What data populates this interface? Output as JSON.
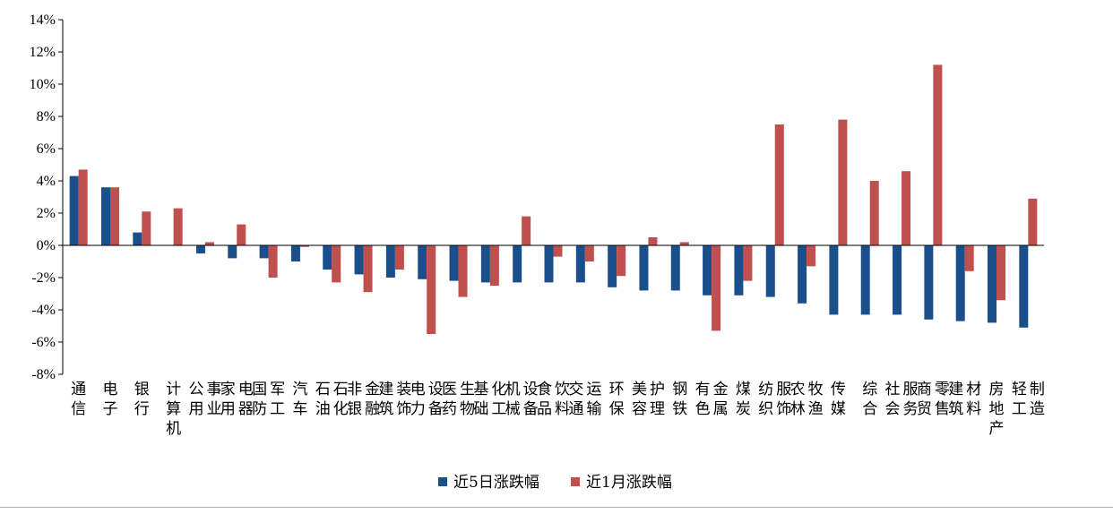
{
  "chart_data": {
    "type": "bar",
    "categories": [
      "通信",
      "电子",
      "银行",
      "计算机",
      "公用事业",
      "家用电器",
      "国防军工",
      "汽车",
      "石油石化",
      "非银金融",
      "建筑装饰",
      "电力设备",
      "医药生物",
      "基础化工",
      "机械设备",
      "食品饮料",
      "交通运输",
      "环保",
      "美容护理",
      "钢铁",
      "有色金属",
      "煤炭",
      "纺织服饰",
      "农林牧渔",
      "传媒",
      "综合",
      "社会服务",
      "商贸零售",
      "建筑材料",
      "房地产",
      "轻工制造"
    ],
    "series": [
      {
        "name": "近5日涨跌幅",
        "color": "#1b4f8c",
        "values": [
          4.3,
          3.6,
          0.8,
          0.0,
          -0.5,
          -0.8,
          -0.8,
          -1.0,
          -1.5,
          -1.8,
          -2.0,
          -2.1,
          -2.2,
          -2.3,
          -2.3,
          -2.3,
          -2.3,
          -2.6,
          -2.8,
          -2.8,
          -3.1,
          -3.1,
          -3.2,
          -3.6,
          -4.3,
          -4.3,
          -4.3,
          -4.6,
          -4.7,
          -4.8,
          -5.1
        ]
      },
      {
        "name": "近1月涨跌幅",
        "color": "#c0504d",
        "values": [
          4.7,
          3.6,
          2.1,
          2.3,
          0.2,
          1.3,
          -2.0,
          -0.1,
          -2.3,
          -2.9,
          -1.5,
          -5.5,
          -3.2,
          -2.5,
          1.8,
          -0.7,
          -1.0,
          -1.9,
          0.5,
          0.2,
          -5.3,
          -2.2,
          7.5,
          -1.3,
          7.8,
          4.0,
          4.6,
          11.2,
          -1.6,
          -3.4,
          2.9
        ]
      }
    ],
    "ylim": [
      -8,
      14
    ],
    "yticks": [
      "14%",
      "12%",
      "10%",
      "8%",
      "6%",
      "4%",
      "2%",
      "0%",
      "-2%",
      "-4%",
      "-6%",
      "-8%"
    ],
    "ytick_values": [
      14,
      12,
      10,
      8,
      6,
      4,
      2,
      0,
      -2,
      -4,
      -6,
      -8
    ],
    "legend_position": "bottom-center",
    "grid": false,
    "title": "",
    "xlabel": "",
    "ylabel": ""
  }
}
